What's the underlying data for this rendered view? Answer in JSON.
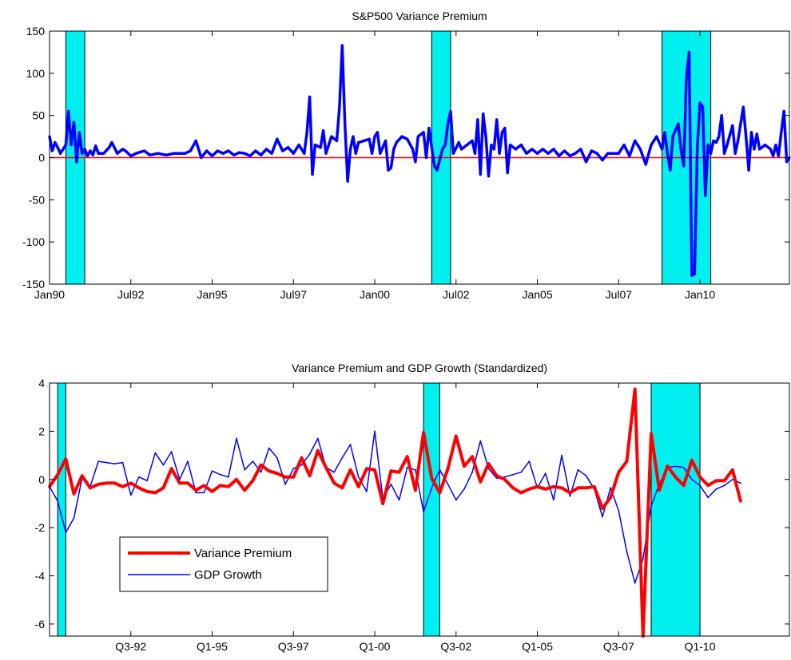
{
  "colors": {
    "recession_band": "#00f0f0",
    "vp_line_top": "#0000ff",
    "zero_line": "#ff0000",
    "vp_line_bottom": "#ff0000",
    "gdp_line": "#0000ff"
  },
  "chart_data": [
    {
      "type": "line",
      "title": "S&P500 Variance Premium",
      "xlabel": "",
      "ylabel": "",
      "x_unit": "month index (0 = Jan90)",
      "xlim": [
        0,
        273
      ],
      "ylim": [
        -150,
        150
      ],
      "y_ticks": [
        -150,
        -100,
        -50,
        0,
        50,
        100,
        150
      ],
      "y_tick_labels": [
        "-150",
        "-100",
        "-50",
        "0",
        "50",
        "100",
        "150"
      ],
      "x_ticks": [
        0,
        30,
        60,
        90,
        120,
        150,
        180,
        210,
        240
      ],
      "x_tick_labels": [
        "Jan90",
        "Jul92",
        "Jan95",
        "Jul97",
        "Jan00",
        "Jul02",
        "Jan05",
        "Jul07",
        "Jan10"
      ],
      "grid": false,
      "recession_bands": [
        [
          6,
          13
        ],
        [
          141,
          148
        ],
        [
          226,
          244
        ]
      ],
      "reference_line": {
        "y": 0
      },
      "series": [
        {
          "values": [
            {
              "x": 0,
              "y": 25
            },
            {
              "x": 1,
              "y": 8
            },
            {
              "x": 2,
              "y": 18
            },
            {
              "x": 3,
              "y": 12
            },
            {
              "x": 4,
              "y": 5
            },
            {
              "x": 6,
              "y": 15
            },
            {
              "x": 7,
              "y": 55
            },
            {
              "x": 8,
              "y": 15
            },
            {
              "x": 9,
              "y": 42
            },
            {
              "x": 10,
              "y": -5
            },
            {
              "x": 11,
              "y": 30
            },
            {
              "x": 12,
              "y": 5
            },
            {
              "x": 13,
              "y": 10
            },
            {
              "x": 14,
              "y": 2
            },
            {
              "x": 15,
              "y": 8
            },
            {
              "x": 16,
              "y": 3
            },
            {
              "x": 17,
              "y": 14
            },
            {
              "x": 18,
              "y": 5
            },
            {
              "x": 20,
              "y": 5
            },
            {
              "x": 22,
              "y": 12
            },
            {
              "x": 23,
              "y": 18
            },
            {
              "x": 25,
              "y": 5
            },
            {
              "x": 27,
              "y": 10
            },
            {
              "x": 28,
              "y": 8
            },
            {
              "x": 30,
              "y": 2
            },
            {
              "x": 32,
              "y": 5
            },
            {
              "x": 35,
              "y": 8
            },
            {
              "x": 37,
              "y": 3
            },
            {
              "x": 40,
              "y": 5
            },
            {
              "x": 43,
              "y": 3
            },
            {
              "x": 46,
              "y": 5
            },
            {
              "x": 50,
              "y": 5
            },
            {
              "x": 52,
              "y": 8
            },
            {
              "x": 54,
              "y": 20
            },
            {
              "x": 56,
              "y": 0
            },
            {
              "x": 58,
              "y": 8
            },
            {
              "x": 60,
              "y": 2
            },
            {
              "x": 62,
              "y": 8
            },
            {
              "x": 64,
              "y": 5
            },
            {
              "x": 66,
              "y": 8
            },
            {
              "x": 68,
              "y": 3
            },
            {
              "x": 70,
              "y": 6
            },
            {
              "x": 72,
              "y": 5
            },
            {
              "x": 74,
              "y": 2
            },
            {
              "x": 76,
              "y": 8
            },
            {
              "x": 78,
              "y": 3
            },
            {
              "x": 80,
              "y": 10
            },
            {
              "x": 82,
              "y": 5
            },
            {
              "x": 84,
              "y": 22
            },
            {
              "x": 86,
              "y": 8
            },
            {
              "x": 88,
              "y": 12
            },
            {
              "x": 90,
              "y": 5
            },
            {
              "x": 92,
              "y": 15
            },
            {
              "x": 94,
              "y": 5
            },
            {
              "x": 95,
              "y": 30
            },
            {
              "x": 96,
              "y": 72
            },
            {
              "x": 97,
              "y": -20
            },
            {
              "x": 98,
              "y": 15
            },
            {
              "x": 100,
              "y": 12
            },
            {
              "x": 101,
              "y": 32
            },
            {
              "x": 102,
              "y": 5
            },
            {
              "x": 104,
              "y": 25
            },
            {
              "x": 106,
              "y": 20
            },
            {
              "x": 107,
              "y": 60
            },
            {
              "x": 108,
              "y": 133
            },
            {
              "x": 109,
              "y": 40
            },
            {
              "x": 110,
              "y": -28
            },
            {
              "x": 111,
              "y": 10
            },
            {
              "x": 112,
              "y": 25
            },
            {
              "x": 113,
              "y": 5
            },
            {
              "x": 114,
              "y": 18
            },
            {
              "x": 116,
              "y": 20
            },
            {
              "x": 118,
              "y": 22
            },
            {
              "x": 119,
              "y": 5
            },
            {
              "x": 120,
              "y": 25
            },
            {
              "x": 121,
              "y": 30
            },
            {
              "x": 122,
              "y": 5
            },
            {
              "x": 124,
              "y": 20
            },
            {
              "x": 125,
              "y": -15
            },
            {
              "x": 126,
              "y": -12
            },
            {
              "x": 127,
              "y": 10
            },
            {
              "x": 128,
              "y": 18
            },
            {
              "x": 130,
              "y": 25
            },
            {
              "x": 132,
              "y": 22
            },
            {
              "x": 134,
              "y": 10
            },
            {
              "x": 135,
              "y": -5
            },
            {
              "x": 136,
              "y": 25
            },
            {
              "x": 138,
              "y": 30
            },
            {
              "x": 139,
              "y": 0
            },
            {
              "x": 140,
              "y": 35
            },
            {
              "x": 142,
              "y": -10
            },
            {
              "x": 143,
              "y": -15
            },
            {
              "x": 145,
              "y": 10
            },
            {
              "x": 146,
              "y": 15
            },
            {
              "x": 147,
              "y": 40
            },
            {
              "x": 148,
              "y": 55
            },
            {
              "x": 149,
              "y": 5
            },
            {
              "x": 151,
              "y": 18
            },
            {
              "x": 152,
              "y": 10
            },
            {
              "x": 154,
              "y": 15
            },
            {
              "x": 156,
              "y": 20
            },
            {
              "x": 157,
              "y": 5
            },
            {
              "x": 158,
              "y": 45
            },
            {
              "x": 159,
              "y": -20
            },
            {
              "x": 160,
              "y": 52
            },
            {
              "x": 161,
              "y": 25
            },
            {
              "x": 162,
              "y": -22
            },
            {
              "x": 163,
              "y": 15
            },
            {
              "x": 164,
              "y": 10
            },
            {
              "x": 165,
              "y": 45
            },
            {
              "x": 166,
              "y": 5
            },
            {
              "x": 167,
              "y": 30
            },
            {
              "x": 168,
              "y": 35
            },
            {
              "x": 169,
              "y": -18
            },
            {
              "x": 170,
              "y": 15
            },
            {
              "x": 172,
              "y": 10
            },
            {
              "x": 174,
              "y": 15
            },
            {
              "x": 176,
              "y": 5
            },
            {
              "x": 178,
              "y": 10
            },
            {
              "x": 180,
              "y": 5
            },
            {
              "x": 182,
              "y": 10
            },
            {
              "x": 184,
              "y": 5
            },
            {
              "x": 186,
              "y": 10
            },
            {
              "x": 188,
              "y": 2
            },
            {
              "x": 190,
              "y": 8
            },
            {
              "x": 192,
              "y": 2
            },
            {
              "x": 194,
              "y": 5
            },
            {
              "x": 196,
              "y": 10
            },
            {
              "x": 198,
              "y": -5
            },
            {
              "x": 200,
              "y": 8
            },
            {
              "x": 202,
              "y": 5
            },
            {
              "x": 204,
              "y": -3
            },
            {
              "x": 206,
              "y": 5
            },
            {
              "x": 208,
              "y": 5
            },
            {
              "x": 210,
              "y": 5
            },
            {
              "x": 212,
              "y": 15
            },
            {
              "x": 214,
              "y": 2
            },
            {
              "x": 216,
              "y": 20
            },
            {
              "x": 218,
              "y": 10
            },
            {
              "x": 220,
              "y": -8
            },
            {
              "x": 222,
              "y": 15
            },
            {
              "x": 224,
              "y": 25
            },
            {
              "x": 226,
              "y": 10
            },
            {
              "x": 227,
              "y": 30
            },
            {
              "x": 228,
              "y": 5
            },
            {
              "x": 229,
              "y": -15
            },
            {
              "x": 230,
              "y": 25
            },
            {
              "x": 232,
              "y": 40
            },
            {
              "x": 233,
              "y": 10
            },
            {
              "x": 234,
              "y": -10
            },
            {
              "x": 235,
              "y": 95
            },
            {
              "x": 236,
              "y": 125
            },
            {
              "x": 237,
              "y": -140
            },
            {
              "x": 238,
              "y": -138
            },
            {
              "x": 239,
              "y": 10
            },
            {
              "x": 240,
              "y": 65
            },
            {
              "x": 241,
              "y": 60
            },
            {
              "x": 242,
              "y": -45
            },
            {
              "x": 243,
              "y": 15
            },
            {
              "x": 244,
              "y": 5
            },
            {
              "x": 245,
              "y": 20
            },
            {
              "x": 246,
              "y": 18
            },
            {
              "x": 247,
              "y": 25
            },
            {
              "x": 248,
              "y": 50
            },
            {
              "x": 249,
              "y": 5
            },
            {
              "x": 250,
              "y": 15
            },
            {
              "x": 252,
              "y": 38
            },
            {
              "x": 253,
              "y": 5
            },
            {
              "x": 254,
              "y": 20
            },
            {
              "x": 256,
              "y": 60
            },
            {
              "x": 257,
              "y": 25
            },
            {
              "x": 258,
              "y": -15
            },
            {
              "x": 259,
              "y": 30
            },
            {
              "x": 260,
              "y": 10
            },
            {
              "x": 261,
              "y": 28
            },
            {
              "x": 262,
              "y": 10
            },
            {
              "x": 264,
              "y": 15
            },
            {
              "x": 266,
              "y": 10
            },
            {
              "x": 267,
              "y": 2
            },
            {
              "x": 268,
              "y": 15
            },
            {
              "x": 269,
              "y": 2
            },
            {
              "x": 270,
              "y": 30
            },
            {
              "x": 271,
              "y": 55
            },
            {
              "x": 272,
              "y": -5
            },
            {
              "x": 273,
              "y": 0
            }
          ]
        }
      ]
    },
    {
      "type": "line",
      "title": "Variance Premium and GDP Growth (Standardized)",
      "xlabel": "",
      "ylabel": "",
      "x_unit": "quarter index (0 = Q1-90)",
      "xlim": [
        0,
        91
      ],
      "ylim": [
        -6.5,
        4
      ],
      "y_ticks": [
        -6,
        -4,
        -2,
        0,
        2,
        4
      ],
      "y_tick_labels": [
        "-6",
        "-4",
        "-2",
        "0",
        "2",
        "4"
      ],
      "x_ticks": [
        10,
        20,
        30,
        40,
        50,
        60,
        70,
        80
      ],
      "x_tick_labels": [
        "Q3-92",
        "Q1-95",
        "Q3-97",
        "Q1-00",
        "Q3-02",
        "Q1-05",
        "Q3-07",
        "Q1-10"
      ],
      "grid": false,
      "recession_bands": [
        [
          1,
          2
        ],
        [
          46,
          48
        ],
        [
          74,
          80
        ]
      ],
      "legend": {
        "placement": "lower-left",
        "entries": [
          "Variance Premium",
          "GDP Growth"
        ]
      },
      "series": [
        {
          "name": "Variance Premium",
          "values": [
            -0.3,
            0.2,
            0.85,
            -0.6,
            0.15,
            -0.35,
            -0.2,
            -0.15,
            -0.15,
            -0.3,
            -0.15,
            -0.35,
            -0.5,
            -0.55,
            -0.35,
            0.45,
            -0.15,
            -0.15,
            -0.45,
            -0.25,
            -0.5,
            -0.25,
            -0.3,
            0.0,
            -0.45,
            -0.05,
            0.6,
            0.35,
            0.25,
            0.1,
            0.1,
            0.9,
            0.15,
            1.2,
            0.5,
            -0.15,
            -0.35,
            0.4,
            -0.3,
            0.45,
            0.4,
            -1.0,
            0.35,
            0.3,
            0.95,
            -0.45,
            1.95,
            0.05,
            -0.55,
            0.45,
            1.8,
            0.55,
            0.95,
            -0.1,
            0.65,
            0.15,
            0.0,
            -0.35,
            -0.55,
            -0.4,
            -0.3,
            -0.4,
            -0.3,
            -0.35,
            -0.55,
            -0.35,
            -0.35,
            -0.3,
            -1.2,
            -0.75,
            0.3,
            0.75,
            3.75,
            -6.5,
            1.9,
            -0.45,
            0.55,
            0.1,
            -0.25,
            0.8,
            0.1,
            -0.25,
            -0.05,
            -0.05,
            0.4,
            -0.9
          ]
        },
        {
          "name": "GDP Growth",
          "values": [
            -0.3,
            -0.9,
            -2.2,
            -1.6,
            0.05,
            -0.3,
            0.75,
            0.7,
            0.65,
            0.7,
            -0.65,
            0.1,
            -0.05,
            1.1,
            0.6,
            1.15,
            0.0,
            0.75,
            -0.55,
            -0.55,
            0.35,
            0.2,
            0.1,
            1.7,
            0.4,
            0.75,
            0.3,
            1.3,
            0.9,
            -0.2,
            0.45,
            0.6,
            1.05,
            1.7,
            0.5,
            0.3,
            0.9,
            1.45,
            0.1,
            -0.5,
            2.0,
            -0.8,
            -0.2,
            -0.85,
            0.5,
            0.4,
            -1.35,
            -0.35,
            0.4,
            -0.2,
            -0.85,
            -0.4,
            0.3,
            1.6,
            0.45,
            0.05,
            0.1,
            0.2,
            0.3,
            0.75,
            -0.35,
            0.25,
            -0.85,
            1.0,
            -0.7,
            0.4,
            0.15,
            -0.4,
            -1.55,
            -0.35,
            -1.3,
            -3.0,
            -4.3,
            -3.3,
            -1.1,
            -0.2,
            0.5,
            0.55,
            0.5,
            0.0,
            -0.25,
            -0.75,
            -0.4,
            -0.25,
            0.0,
            -0.15
          ]
        }
      ]
    }
  ]
}
